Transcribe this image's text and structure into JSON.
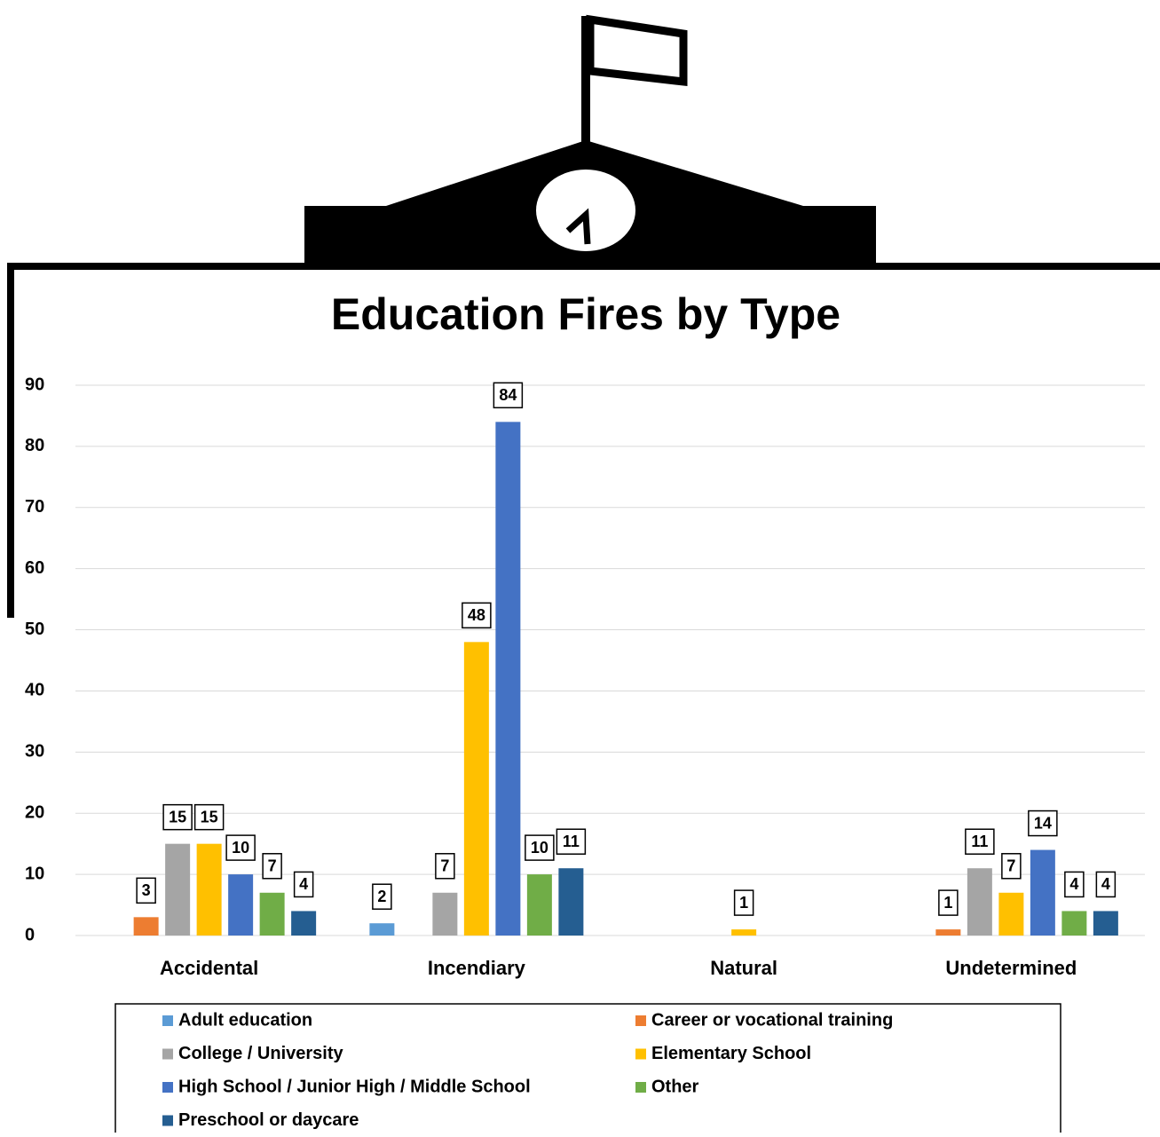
{
  "chart_data": {
    "type": "bar",
    "title": "Education Fires by Type",
    "categories": [
      "Accidental",
      "Incendiary",
      "Natural",
      "Undetermined"
    ],
    "series": [
      {
        "name": "Adult education",
        "color": "#5b9bd5",
        "values": [
          null,
          2,
          null,
          null
        ]
      },
      {
        "name": "Career or vocational training",
        "color": "#ed7d31",
        "values": [
          3,
          null,
          null,
          1
        ]
      },
      {
        "name": "College / University",
        "color": "#a5a5a5",
        "values": [
          15,
          7,
          null,
          11
        ]
      },
      {
        "name": "Elementary School",
        "color": "#ffc000",
        "values": [
          15,
          48,
          1,
          7
        ]
      },
      {
        "name": "High School / Junior High / Middle School",
        "color": "#4472c4",
        "values": [
          10,
          84,
          null,
          14
        ]
      },
      {
        "name": "Other",
        "color": "#70ad47",
        "values": [
          7,
          10,
          null,
          4
        ]
      },
      {
        "name": "Preschool or daycare",
        "color": "#255e91",
        "values": [
          4,
          11,
          null,
          4
        ]
      }
    ],
    "ylim": [
      0,
      90
    ],
    "yticks": [
      0,
      10,
      20,
      30,
      40,
      50,
      60,
      70,
      80,
      90
    ],
    "grid": true,
    "legend": "bottom"
  }
}
